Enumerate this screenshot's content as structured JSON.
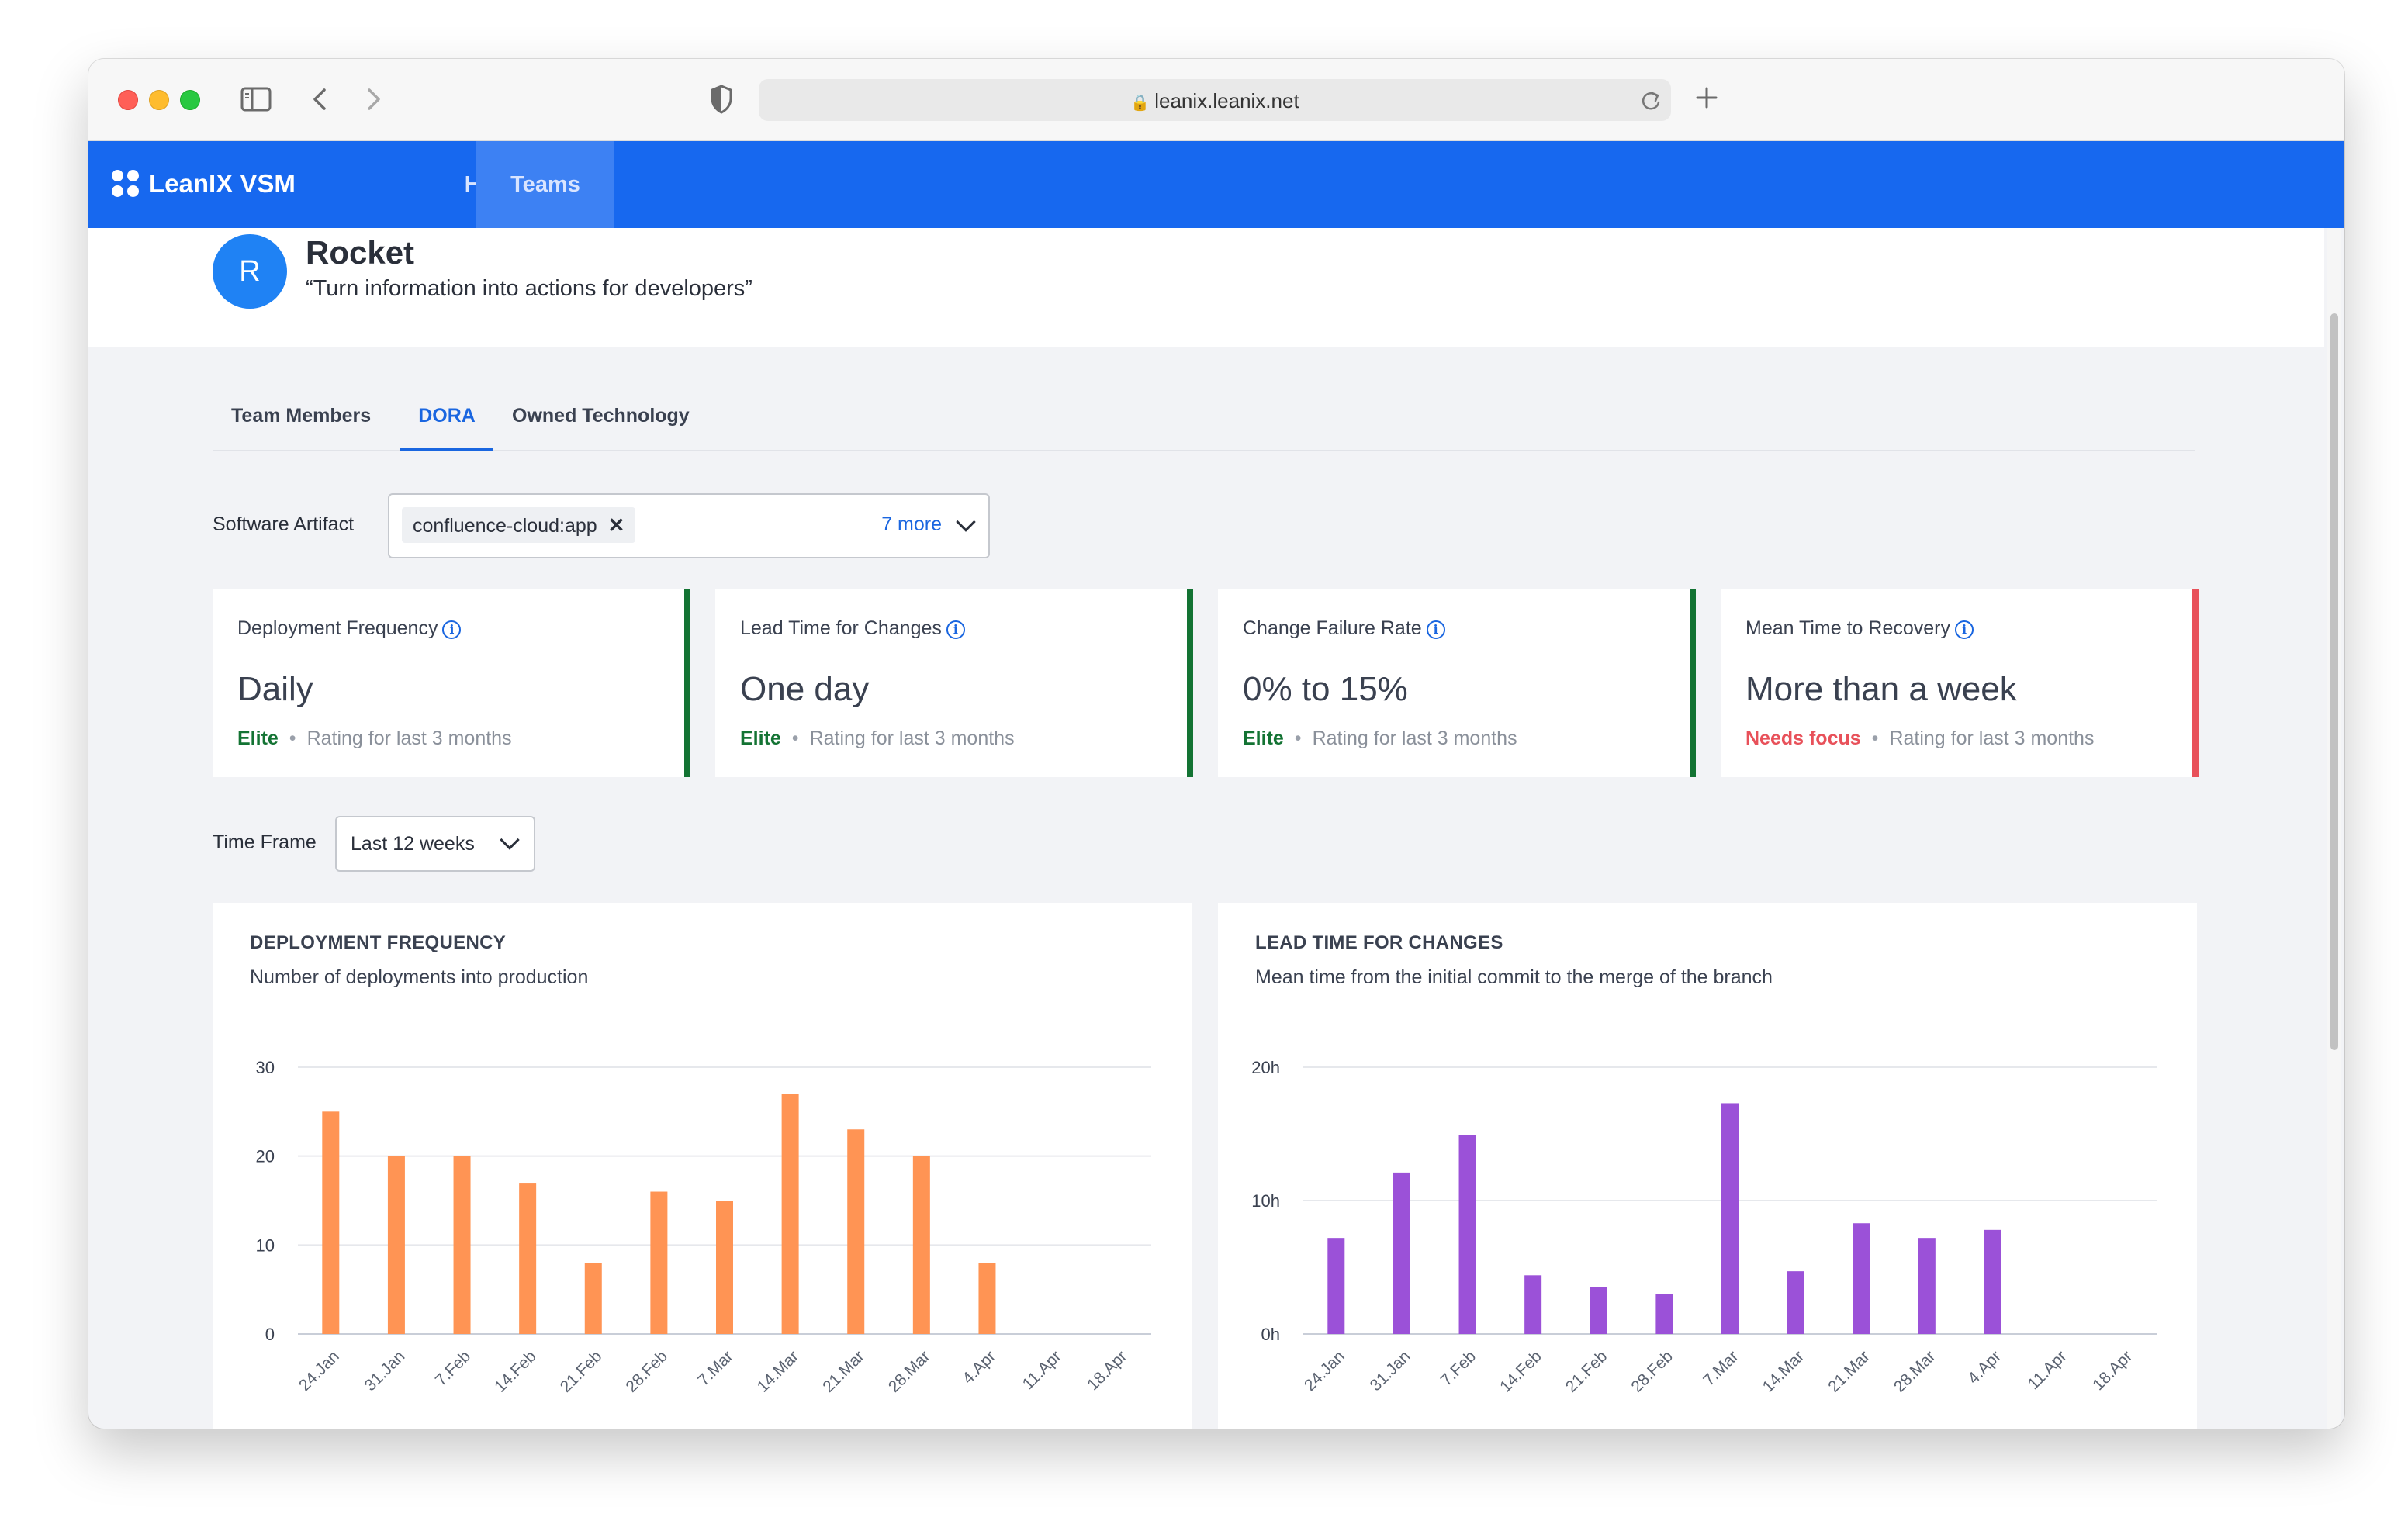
{
  "browser": {
    "url": "leanix.leanix.net"
  },
  "nav": {
    "brand": "LeanIX VSM",
    "items": [
      {
        "label": "Home"
      },
      {
        "label": "Teams"
      }
    ]
  },
  "team": {
    "initial": "R",
    "name": "Rocket",
    "motto": "“Turn information into actions for developers”"
  },
  "tabs": [
    {
      "label": "Team Members"
    },
    {
      "label": "DORA"
    },
    {
      "label": "Owned Technology"
    }
  ],
  "filters": {
    "artifact_label": "Software Artifact",
    "artifact_chip": "confluence-cloud:app",
    "artifact_more": "7 more",
    "timeframe_label": "Time Frame",
    "timeframe_value": "Last 12 weeks"
  },
  "metrics": [
    {
      "title": "Deployment Frequency",
      "value": "Daily",
      "status": "Elite",
      "note": "Rating for last 3 months",
      "color": "#137333"
    },
    {
      "title": "Lead Time for Changes",
      "value": "One day",
      "status": "Elite",
      "note": "Rating for last 3 months",
      "color": "#137333"
    },
    {
      "title": "Change Failure Rate",
      "value": "0% to 15%",
      "status": "Elite",
      "note": "Rating for last 3 months",
      "color": "#137333"
    },
    {
      "title": "Mean Time to Recovery",
      "value": "More than a week",
      "status": "Needs focus",
      "note": "Rating for last 3 months",
      "color": "#e8515a"
    }
  ],
  "chart_data": [
    {
      "type": "bar",
      "title": "DEPLOYMENT FREQUENCY",
      "subtitle": "Number of deployments into production",
      "categories": [
        "24.Jan",
        "31.Jan",
        "7.Feb",
        "14.Feb",
        "21.Feb",
        "28.Feb",
        "7.Mar",
        "14.Mar",
        "21.Mar",
        "28.Mar",
        "4.Apr",
        "11.Apr",
        "18.Apr"
      ],
      "values": [
        25,
        20,
        20,
        17,
        8,
        16,
        15,
        27,
        23,
        20,
        8,
        0,
        0
      ],
      "ylim": [
        0,
        30
      ],
      "yticks": [
        0,
        10,
        20,
        30
      ],
      "ytick_labels": [
        "0",
        "10",
        "20",
        "30"
      ],
      "color": "#ff9454",
      "grid": true
    },
    {
      "type": "bar",
      "title": "LEAD TIME FOR CHANGES",
      "subtitle": "Mean time from the initial commit to the merge of the branch",
      "categories": [
        "24.Jan",
        "31.Jan",
        "7.Feb",
        "14.Feb",
        "21.Feb",
        "28.Feb",
        "7.Mar",
        "14.Mar",
        "21.Mar",
        "28.Mar",
        "4.Apr",
        "11.Apr",
        "18.Apr"
      ],
      "values": [
        7.2,
        12.1,
        14.9,
        4.4,
        3.5,
        3.0,
        17.3,
        4.7,
        8.3,
        7.2,
        7.8,
        0,
        0
      ],
      "ylim": [
        0,
        20
      ],
      "yticks": [
        0,
        10,
        20
      ],
      "ytick_labels": [
        "0h",
        "10h",
        "20h"
      ],
      "color": "#9b51d8",
      "grid": true
    }
  ]
}
